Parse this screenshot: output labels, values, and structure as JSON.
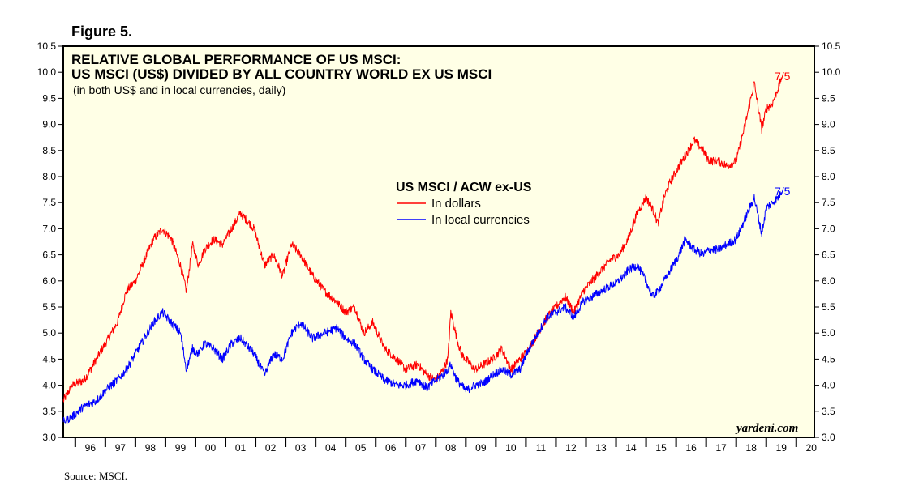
{
  "figure_label": "Figure 5.",
  "source": "Source: MSCI.",
  "chart_data": {
    "type": "line",
    "title": "RELATIVE GLOBAL PERFORMANCE OF US MSCI:",
    "title_line2": "US MSCI (US$) DIVIDED BY ALL COUNTRY WORLD EX US MSCI",
    "subtitle": "(in both US$ and in local currencies, daily)",
    "legend_title": "US MSCI / ACW ex-US",
    "watermark": "yardeni.com",
    "ylim": [
      3.0,
      10.5
    ],
    "xlim": [
      1995.6,
      2020.6
    ],
    "y_ticks": [
      "3.0",
      "3.5",
      "4.0",
      "4.5",
      "5.0",
      "5.5",
      "6.0",
      "6.5",
      "7.0",
      "7.5",
      "8.0",
      "8.5",
      "9.0",
      "9.5",
      "10.0",
      "10.5"
    ],
    "x_tick_labels": [
      "96",
      "97",
      "98",
      "99",
      "00",
      "01",
      "02",
      "03",
      "04",
      "05",
      "06",
      "07",
      "08",
      "09",
      "10",
      "11",
      "12",
      "13",
      "14",
      "15",
      "16",
      "17",
      "18",
      "19",
      "20"
    ],
    "grid": false,
    "series": [
      {
        "name": "In dollars",
        "color": "#ff0000",
        "end_label": "7/5",
        "x": [
          1995.6,
          1995.9,
          1996.3,
          1996.7,
          1997.0,
          1997.4,
          1997.7,
          1998.0,
          1998.3,
          1998.6,
          1998.9,
          1999.2,
          1999.5,
          1999.7,
          1999.9,
          2000.1,
          2000.3,
          2000.6,
          2000.9,
          2001.2,
          2001.5,
          2001.8,
          2001.95,
          2002.3,
          2002.6,
          2002.9,
          2003.2,
          2003.5,
          2003.9,
          2004.3,
          2004.7,
          2005.0,
          2005.3,
          2005.6,
          2005.9,
          2006.3,
          2006.7,
          2007.0,
          2007.4,
          2007.7,
          2008.0,
          2008.25,
          2008.4,
          2008.5,
          2008.7,
          2008.85,
          2009.0,
          2009.3,
          2009.6,
          2009.9,
          2010.2,
          2010.5,
          2010.8,
          2011.1,
          2011.4,
          2011.7,
          2012.0,
          2012.3,
          2012.6,
          2012.9,
          2013.2,
          2013.5,
          2013.8,
          2014.1,
          2014.4,
          2014.7,
          2015.0,
          2015.2,
          2015.4,
          2015.6,
          2015.8,
          2016.1,
          2016.3,
          2016.6,
          2016.9,
          2017.1,
          2017.4,
          2017.7,
          2018.0,
          2018.3,
          2018.6,
          2018.85,
          2019.0,
          2019.2,
          2019.4,
          2019.5
        ],
        "values": [
          3.7,
          4.0,
          4.1,
          4.5,
          4.8,
          5.2,
          5.8,
          6.0,
          6.4,
          6.8,
          7.0,
          6.8,
          6.3,
          5.8,
          6.7,
          6.3,
          6.6,
          6.8,
          6.7,
          7.0,
          7.3,
          7.1,
          7.0,
          6.3,
          6.5,
          6.1,
          6.7,
          6.5,
          6.1,
          5.8,
          5.6,
          5.4,
          5.5,
          5.0,
          5.2,
          4.7,
          4.5,
          4.3,
          4.4,
          4.2,
          4.1,
          4.3,
          4.5,
          5.4,
          4.9,
          4.6,
          4.5,
          4.3,
          4.4,
          4.5,
          4.7,
          4.3,
          4.5,
          4.7,
          5.0,
          5.3,
          5.5,
          5.7,
          5.4,
          5.8,
          6.0,
          6.2,
          6.4,
          6.5,
          6.8,
          7.3,
          7.6,
          7.4,
          7.1,
          7.6,
          7.9,
          8.2,
          8.4,
          8.7,
          8.5,
          8.3,
          8.3,
          8.2,
          8.3,
          9.0,
          9.8,
          8.9,
          9.3,
          9.4,
          9.7,
          9.9
        ]
      },
      {
        "name": "In local currencies",
        "color": "#0000ff",
        "end_label": "7/5",
        "x": [
          1995.6,
          1995.9,
          1996.3,
          1996.7,
          1997.0,
          1997.4,
          1997.7,
          1998.0,
          1998.3,
          1998.6,
          1998.9,
          1999.2,
          1999.5,
          1999.7,
          1999.9,
          2000.1,
          2000.3,
          2000.6,
          2000.9,
          2001.2,
          2001.5,
          2001.8,
          2001.95,
          2002.3,
          2002.6,
          2002.9,
          2003.2,
          2003.5,
          2003.9,
          2004.3,
          2004.7,
          2005.0,
          2005.3,
          2005.6,
          2005.9,
          2006.3,
          2006.7,
          2007.0,
          2007.4,
          2007.7,
          2008.0,
          2008.25,
          2008.4,
          2008.5,
          2008.7,
          2008.85,
          2009.0,
          2009.3,
          2009.6,
          2009.9,
          2010.2,
          2010.5,
          2010.8,
          2011.1,
          2011.4,
          2011.7,
          2012.0,
          2012.3,
          2012.6,
          2012.9,
          2013.2,
          2013.5,
          2013.8,
          2014.1,
          2014.4,
          2014.7,
          2015.0,
          2015.2,
          2015.4,
          2015.6,
          2015.8,
          2016.1,
          2016.3,
          2016.6,
          2016.9,
          2017.1,
          2017.4,
          2017.7,
          2018.0,
          2018.3,
          2018.6,
          2018.85,
          2019.0,
          2019.2,
          2019.4,
          2019.5
        ],
        "values": [
          3.3,
          3.4,
          3.6,
          3.7,
          3.9,
          4.1,
          4.3,
          4.6,
          4.9,
          5.2,
          5.4,
          5.2,
          5.0,
          4.3,
          4.7,
          4.6,
          4.8,
          4.7,
          4.5,
          4.8,
          4.9,
          4.7,
          4.6,
          4.2,
          4.6,
          4.5,
          5.0,
          5.2,
          4.9,
          5.0,
          5.1,
          4.9,
          4.8,
          4.5,
          4.3,
          4.1,
          4.0,
          4.0,
          4.1,
          3.95,
          4.1,
          4.2,
          4.3,
          4.4,
          4.1,
          4.0,
          3.9,
          4.0,
          4.05,
          4.2,
          4.3,
          4.2,
          4.3,
          4.7,
          5.0,
          5.3,
          5.4,
          5.5,
          5.3,
          5.6,
          5.7,
          5.8,
          5.9,
          6.0,
          6.2,
          6.3,
          6.0,
          5.7,
          5.8,
          6.0,
          6.2,
          6.5,
          6.8,
          6.6,
          6.5,
          6.6,
          6.6,
          6.7,
          6.8,
          7.2,
          7.6,
          6.9,
          7.4,
          7.5,
          7.6,
          7.7
        ]
      }
    ]
  }
}
